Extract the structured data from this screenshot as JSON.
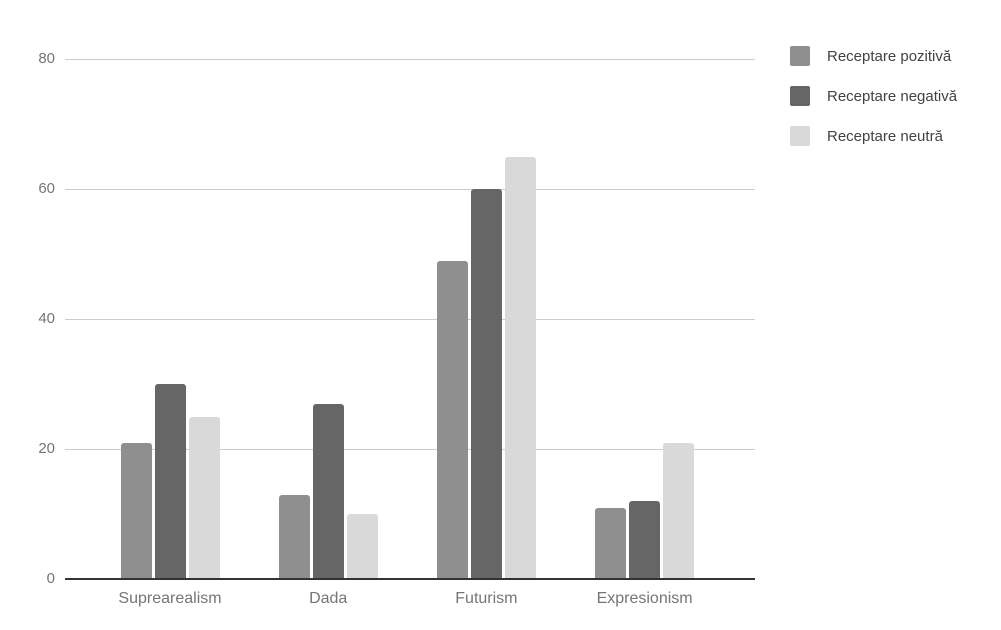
{
  "chart_data": {
    "type": "bar",
    "title": "",
    "categories": [
      "Suprearealism",
      "Dada",
      "Futurism",
      "Expresionism"
    ],
    "series": [
      {
        "name": "Receptare pozitivă",
        "color": "#8f8f8f",
        "values": [
          21,
          13,
          49,
          11
        ]
      },
      {
        "name": "Receptare negativă",
        "color": "#666666",
        "values": [
          30,
          27,
          60,
          12
        ]
      },
      {
        "name": "Receptare neutră",
        "color": "#d9d9d9",
        "values": [
          25,
          10,
          65,
          21
        ]
      }
    ],
    "xlabel": "",
    "ylabel": "",
    "ylim": [
      0,
      80
    ],
    "yticks": [
      0,
      20,
      40,
      60,
      80
    ],
    "grid": true,
    "legend_position": "right",
    "background": "#ffffff"
  }
}
